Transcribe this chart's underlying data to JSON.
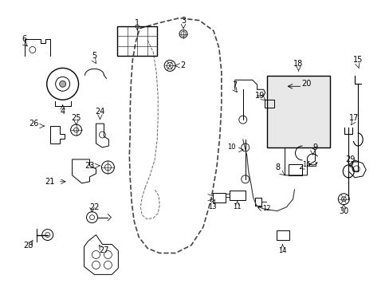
{
  "background_color": "#ffffff",
  "line_color": "#000000",
  "figsize": [
    4.89,
    3.6
  ],
  "dpi": 100,
  "xlim": [
    0,
    489
  ],
  "ylim": [
    0,
    360
  ]
}
